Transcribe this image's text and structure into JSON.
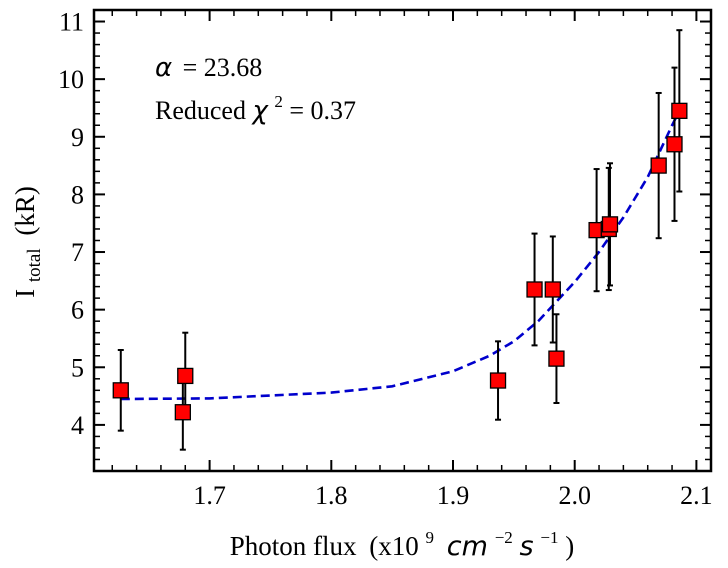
{
  "chart_data": {
    "type": "scatter",
    "title": "",
    "xlabel": "Photon flux",
    "xlabel_unit": "(x10",
    "xlabel_unit_exp1": "9",
    "xlabel_unit_cm": "cm",
    "xlabel_unit_exp2": "−2",
    "xlabel_unit_s": "s",
    "xlabel_unit_exp3": "−1",
    "xlabel_unit_close": ")",
    "ylabel": "I",
    "ylabel_sub": "total",
    "ylabel_unit": "(kR)",
    "xlim": [
      1.605,
      2.112
    ],
    "ylim": [
      3.2,
      11.2
    ],
    "xticks": [
      1.7,
      1.8,
      1.9,
      2.0,
      2.1
    ],
    "xtick_labels": [
      "1.7",
      "1.8",
      "1.9",
      "2.0",
      "2.1"
    ],
    "yticks": [
      4,
      5,
      6,
      7,
      8,
      9,
      10,
      11
    ],
    "ytick_labels": [
      "4",
      "5",
      "6",
      "7",
      "8",
      "9",
      "10",
      "11"
    ],
    "series": [
      {
        "name": "data",
        "marker": "square",
        "x": [
          1.627,
          1.678,
          1.68,
          1.937,
          1.967,
          1.982,
          1.985,
          2.018,
          2.028,
          2.029,
          2.069,
          2.082,
          2.086
        ],
        "y": [
          4.6,
          4.22,
          4.85,
          4.77,
          6.35,
          6.35,
          5.15,
          7.38,
          7.4,
          7.48,
          8.5,
          8.87,
          9.45
        ],
        "yerr": [
          0.7,
          0.65,
          0.75,
          0.68,
          0.97,
          0.92,
          0.77,
          1.06,
          1.06,
          1.06,
          1.26,
          1.33,
          1.4
        ]
      },
      {
        "name": "fit",
        "style": "dashed",
        "x": [
          1.627,
          1.7,
          1.8,
          1.85,
          1.9,
          1.93,
          1.95,
          1.97,
          2.0,
          2.02,
          2.04,
          2.06,
          2.08,
          2.086
        ],
        "y": [
          4.45,
          4.46,
          4.56,
          4.67,
          4.93,
          5.2,
          5.45,
          5.8,
          6.48,
          7.0,
          7.6,
          8.3,
          9.2,
          9.45
        ]
      }
    ],
    "annotations": {
      "alpha_symbol": "α",
      "alpha_value": "= 23.68",
      "chi_prefix": "Reduced ",
      "chi_symbol": "χ",
      "chi_exp": "2",
      "chi_value": " = 0.37"
    },
    "colors": {
      "marker_fill": "#ff0000",
      "marker_edge": "#000000",
      "errorbar": "#000000",
      "fit_line": "#0000cc",
      "axis": "#000000"
    },
    "grid": false,
    "legend": "none"
  }
}
